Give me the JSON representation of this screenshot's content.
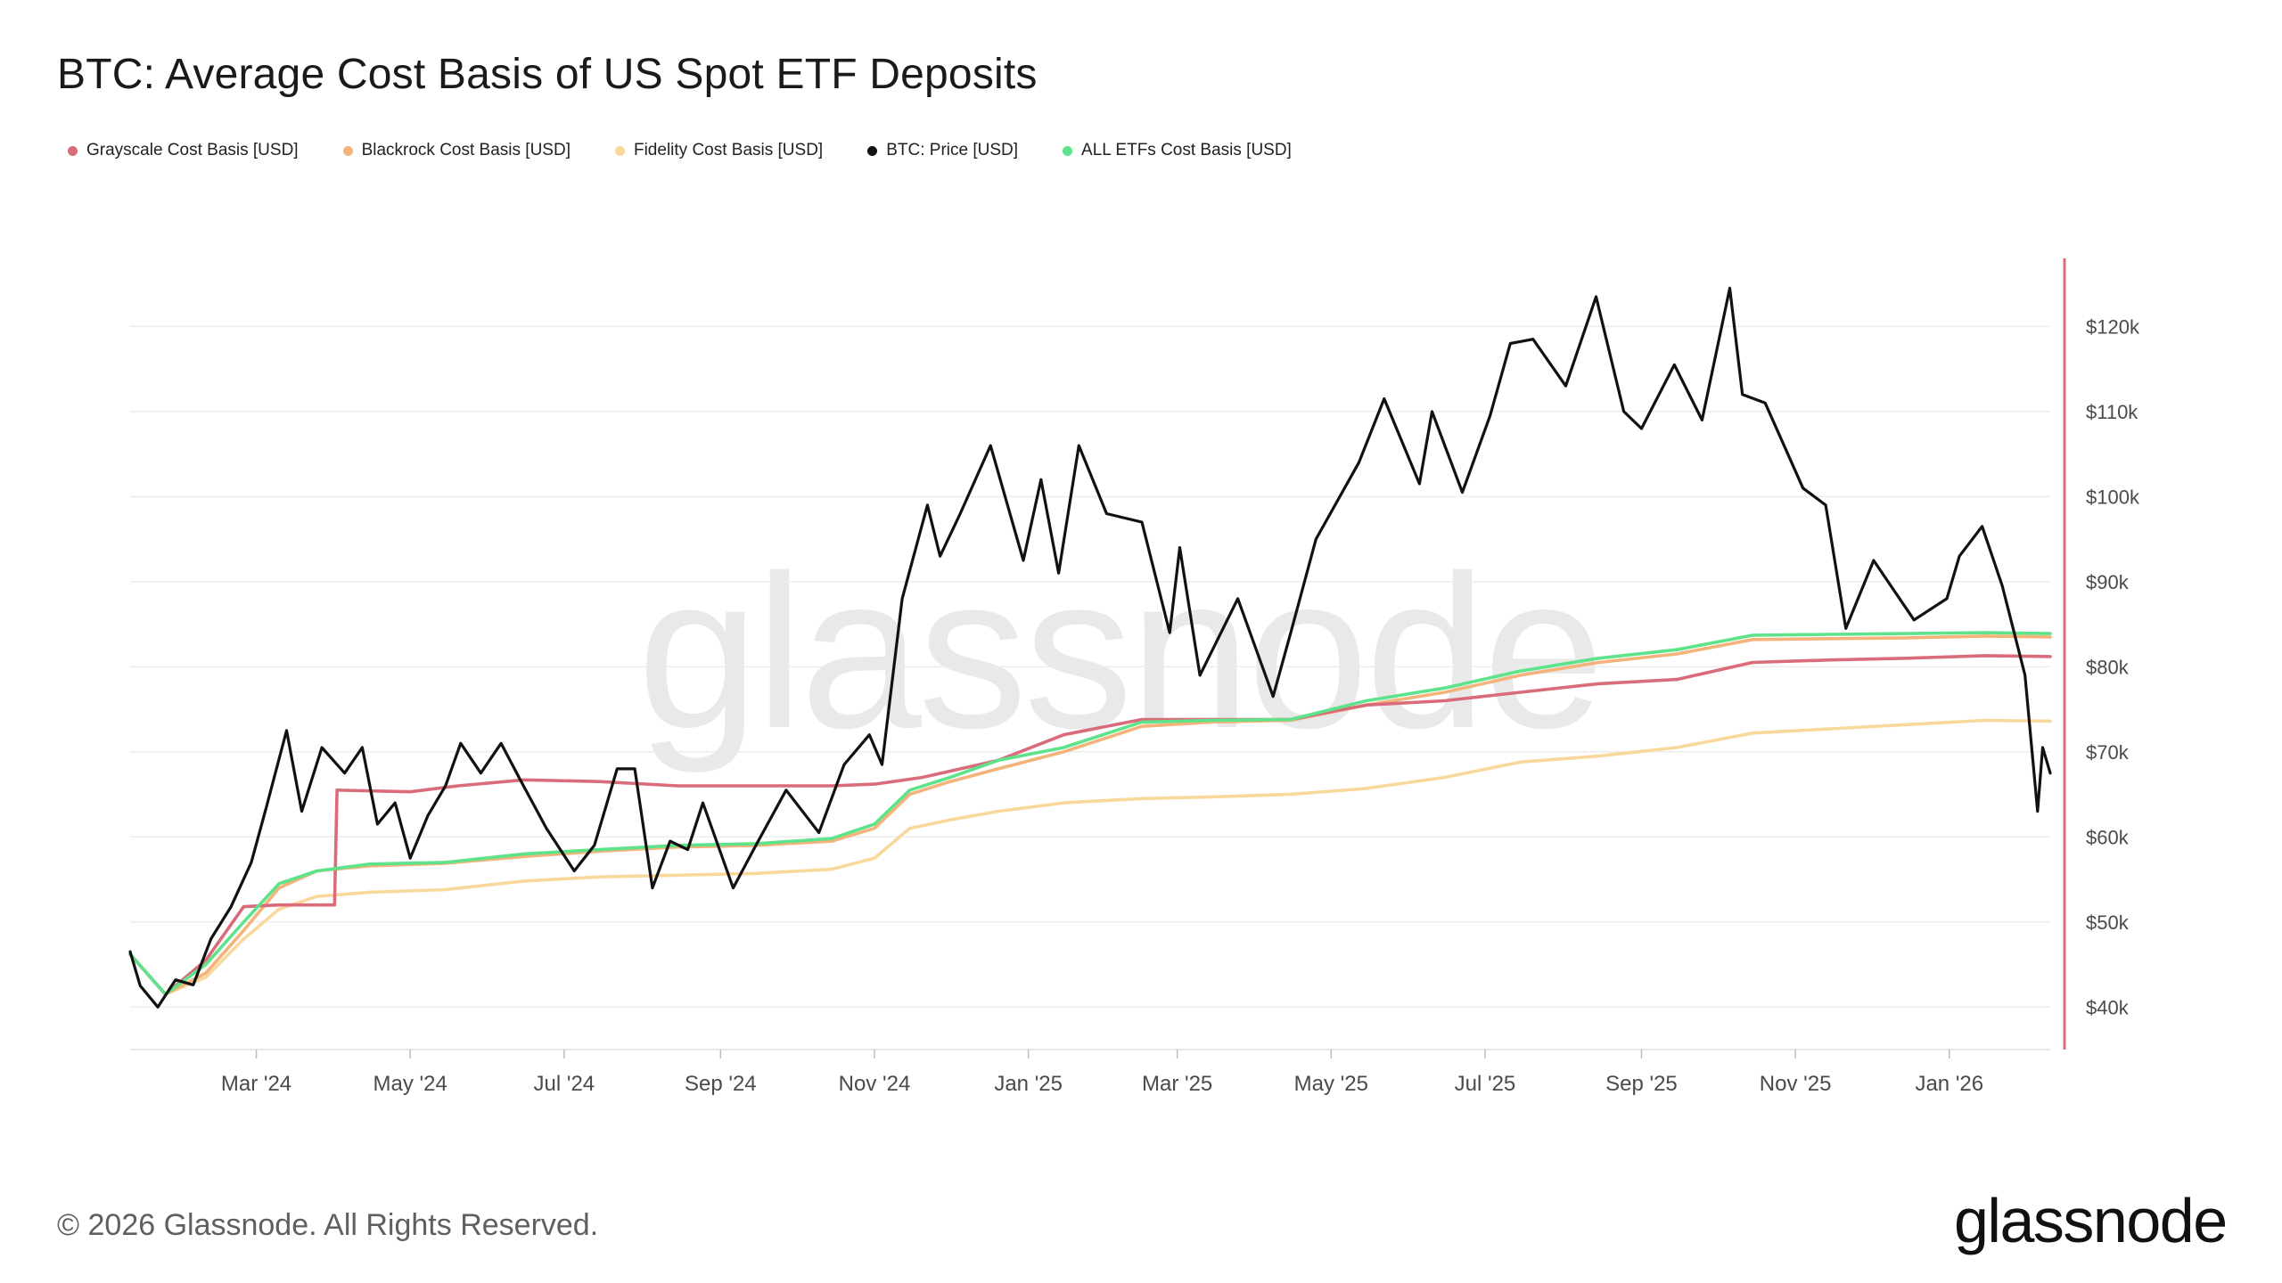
{
  "header": {
    "title": "BTC: Average Cost Basis of US Spot ETF Deposits"
  },
  "legend": [
    {
      "label": "Grayscale Cost Basis [USD]",
      "color": "#d96b7a"
    },
    {
      "label": "Blackrock Cost Basis [USD]",
      "color": "#f4b37a"
    },
    {
      "label": "Fidelity Cost Basis [USD]",
      "color": "#f9d89c"
    },
    {
      "label": "BTC: Price [USD]",
      "color": "#111111"
    },
    {
      "label": "ALL ETFs Cost Basis [USD]",
      "color": "#5ee38a"
    }
  ],
  "footer": {
    "copyright": "© 2026 Glassnode. All Rights Reserved.",
    "brand": "glassnode",
    "watermark": "glassnode"
  },
  "chart_data": {
    "type": "line",
    "title": "BTC: Average Cost Basis of US Spot ETF Deposits",
    "x_range": [
      "2024-01-11",
      "2026-02-10"
    ],
    "ylim": [
      35000,
      128000
    ],
    "y_axis_position": "right",
    "y_ticks": [
      {
        "value": 40000,
        "label": "$40k"
      },
      {
        "value": 50000,
        "label": "$50k"
      },
      {
        "value": 60000,
        "label": "$60k"
      },
      {
        "value": 70000,
        "label": "$70k"
      },
      {
        "value": 80000,
        "label": "$80k"
      },
      {
        "value": 90000,
        "label": "$90k"
      },
      {
        "value": 100000,
        "label": "$100k"
      },
      {
        "value": 110000,
        "label": "$110k"
      },
      {
        "value": 120000,
        "label": "$120k"
      }
    ],
    "x_ticks": [
      {
        "date": "2024-03-01",
        "label": "Mar '24"
      },
      {
        "date": "2024-05-01",
        "label": "May '24"
      },
      {
        "date": "2024-07-01",
        "label": "Jul '24"
      },
      {
        "date": "2024-09-01",
        "label": "Sep '24"
      },
      {
        "date": "2024-11-01",
        "label": "Nov '24"
      },
      {
        "date": "2025-01-01",
        "label": "Jan '25"
      },
      {
        "date": "2025-03-01",
        "label": "Mar '25"
      },
      {
        "date": "2025-05-01",
        "label": "May '25"
      },
      {
        "date": "2025-07-01",
        "label": "Jul '25"
      },
      {
        "date": "2025-09-01",
        "label": "Sep '25"
      },
      {
        "date": "2025-11-01",
        "label": "Nov '25"
      },
      {
        "date": "2026-01-01",
        "label": "Jan '26"
      }
    ],
    "grid": "horizontal",
    "legend_position": "top-left",
    "series": [
      {
        "name": "Fidelity Cost Basis [USD]",
        "color": "#f9d89c",
        "points": [
          [
            "2024-01-11",
            46200
          ],
          [
            "2024-01-25",
            41500
          ],
          [
            "2024-02-10",
            43500
          ],
          [
            "2024-02-25",
            48000
          ],
          [
            "2024-03-10",
            51500
          ],
          [
            "2024-03-25",
            53000
          ],
          [
            "2024-04-15",
            53500
          ],
          [
            "2024-05-15",
            53800
          ],
          [
            "2024-06-15",
            54800
          ],
          [
            "2024-07-15",
            55300
          ],
          [
            "2024-08-15",
            55500
          ],
          [
            "2024-09-15",
            55700
          ],
          [
            "2024-10-15",
            56200
          ],
          [
            "2024-11-01",
            57500
          ],
          [
            "2024-11-15",
            61000
          ],
          [
            "2024-12-01",
            62000
          ],
          [
            "2024-12-20",
            63000
          ],
          [
            "2025-01-15",
            64000
          ],
          [
            "2025-02-15",
            64500
          ],
          [
            "2025-03-15",
            64700
          ],
          [
            "2025-04-15",
            65000
          ],
          [
            "2025-05-15",
            65700
          ],
          [
            "2025-06-15",
            67000
          ],
          [
            "2025-07-15",
            68800
          ],
          [
            "2025-08-15",
            69500
          ],
          [
            "2025-09-15",
            70500
          ],
          [
            "2025-10-15",
            72200
          ],
          [
            "2025-11-15",
            72700
          ],
          [
            "2025-12-15",
            73200
          ],
          [
            "2026-01-15",
            73700
          ],
          [
            "2026-02-10",
            73600
          ]
        ]
      },
      {
        "name": "Blackrock Cost Basis [USD]",
        "color": "#f4b37a",
        "points": [
          [
            "2024-01-11",
            46200
          ],
          [
            "2024-01-25",
            41500
          ],
          [
            "2024-02-10",
            44000
          ],
          [
            "2024-02-25",
            49000
          ],
          [
            "2024-03-10",
            54000
          ],
          [
            "2024-03-25",
            56000
          ],
          [
            "2024-04-15",
            56600
          ],
          [
            "2024-05-15",
            56900
          ],
          [
            "2024-06-15",
            57700
          ],
          [
            "2024-07-15",
            58300
          ],
          [
            "2024-08-15",
            58800
          ],
          [
            "2024-09-15",
            59000
          ],
          [
            "2024-10-15",
            59500
          ],
          [
            "2024-11-01",
            61000
          ],
          [
            "2024-11-15",
            65000
          ],
          [
            "2024-12-01",
            66500
          ],
          [
            "2024-12-20",
            68000
          ],
          [
            "2025-01-15",
            70000
          ],
          [
            "2025-02-15",
            73000
          ],
          [
            "2025-03-15",
            73500
          ],
          [
            "2025-04-15",
            73700
          ],
          [
            "2025-05-15",
            75500
          ],
          [
            "2025-06-15",
            77000
          ],
          [
            "2025-07-15",
            79000
          ],
          [
            "2025-08-15",
            80500
          ],
          [
            "2025-09-15",
            81500
          ],
          [
            "2025-10-15",
            83200
          ],
          [
            "2025-11-15",
            83300
          ],
          [
            "2025-12-15",
            83400
          ],
          [
            "2026-01-15",
            83600
          ],
          [
            "2026-02-10",
            83500
          ]
        ]
      },
      {
        "name": "Grayscale Cost Basis [USD]",
        "color": "#d96b7a",
        "points": [
          [
            "2024-01-11",
            46200
          ],
          [
            "2024-01-25",
            41500
          ],
          [
            "2024-02-10",
            45500
          ],
          [
            "2024-02-25",
            51800
          ],
          [
            "2024-03-10",
            52000
          ],
          [
            "2024-03-25",
            52000
          ],
          [
            "2024-04-01",
            52000
          ],
          [
            "2024-04-02",
            65500
          ],
          [
            "2024-05-01",
            65300
          ],
          [
            "2024-05-20",
            66000
          ],
          [
            "2024-06-15",
            66700
          ],
          [
            "2024-07-15",
            66500
          ],
          [
            "2024-08-15",
            66000
          ],
          [
            "2024-09-15",
            66000
          ],
          [
            "2024-10-15",
            66000
          ],
          [
            "2024-11-01",
            66200
          ],
          [
            "2024-11-20",
            67000
          ],
          [
            "2024-12-20",
            69000
          ],
          [
            "2025-01-15",
            72000
          ],
          [
            "2025-02-15",
            73800
          ],
          [
            "2025-03-15",
            73800
          ],
          [
            "2025-04-15",
            73800
          ],
          [
            "2025-05-15",
            75500
          ],
          [
            "2025-06-15",
            76000
          ],
          [
            "2025-07-15",
            77000
          ],
          [
            "2025-08-15",
            78000
          ],
          [
            "2025-09-15",
            78500
          ],
          [
            "2025-10-15",
            80500
          ],
          [
            "2025-11-15",
            80800
          ],
          [
            "2025-12-15",
            81000
          ],
          [
            "2026-01-15",
            81300
          ],
          [
            "2026-02-10",
            81200
          ]
        ]
      },
      {
        "name": "ALL ETFs Cost Basis [USD]",
        "color": "#5ee38a",
        "points": [
          [
            "2024-01-11",
            46200
          ],
          [
            "2024-01-25",
            41500
          ],
          [
            "2024-02-10",
            45000
          ],
          [
            "2024-02-25",
            50000
          ],
          [
            "2024-03-10",
            54500
          ],
          [
            "2024-03-25",
            56000
          ],
          [
            "2024-04-15",
            56800
          ],
          [
            "2024-05-15",
            57000
          ],
          [
            "2024-06-15",
            58000
          ],
          [
            "2024-07-15",
            58500
          ],
          [
            "2024-08-15",
            59000
          ],
          [
            "2024-09-15",
            59200
          ],
          [
            "2024-10-15",
            59800
          ],
          [
            "2024-11-01",
            61500
          ],
          [
            "2024-11-15",
            65500
          ],
          [
            "2024-12-01",
            67000
          ],
          [
            "2024-12-20",
            69000
          ],
          [
            "2025-01-15",
            70500
          ],
          [
            "2025-02-15",
            73500
          ],
          [
            "2025-03-15",
            73700
          ],
          [
            "2025-04-15",
            73800
          ],
          [
            "2025-05-15",
            76000
          ],
          [
            "2025-06-15",
            77500
          ],
          [
            "2025-07-15",
            79500
          ],
          [
            "2025-08-15",
            81000
          ],
          [
            "2025-09-15",
            82000
          ],
          [
            "2025-10-15",
            83700
          ],
          [
            "2025-11-15",
            83800
          ],
          [
            "2025-12-15",
            83900
          ],
          [
            "2026-01-15",
            84000
          ],
          [
            "2026-02-10",
            83900
          ]
        ]
      },
      {
        "name": "BTC: Price [USD]",
        "color": "#111111",
        "points": [
          [
            "2024-01-11",
            46500
          ],
          [
            "2024-01-15",
            42500
          ],
          [
            "2024-01-22",
            40000
          ],
          [
            "2024-01-29",
            43200
          ],
          [
            "2024-02-05",
            42600
          ],
          [
            "2024-02-12",
            48000
          ],
          [
            "2024-02-20",
            51800
          ],
          [
            "2024-02-28",
            57000
          ],
          [
            "2024-03-05",
            63500
          ],
          [
            "2024-03-13",
            72500
          ],
          [
            "2024-03-19",
            63000
          ],
          [
            "2024-03-27",
            70500
          ],
          [
            "2024-04-05",
            67500
          ],
          [
            "2024-04-12",
            70500
          ],
          [
            "2024-04-18",
            61500
          ],
          [
            "2024-04-25",
            64000
          ],
          [
            "2024-05-01",
            57500
          ],
          [
            "2024-05-08",
            62500
          ],
          [
            "2024-05-15",
            66000
          ],
          [
            "2024-05-21",
            71000
          ],
          [
            "2024-05-29",
            67500
          ],
          [
            "2024-06-06",
            71000
          ],
          [
            "2024-06-14",
            66500
          ],
          [
            "2024-06-24",
            61000
          ],
          [
            "2024-07-05",
            56000
          ],
          [
            "2024-07-13",
            59000
          ],
          [
            "2024-07-22",
            68000
          ],
          [
            "2024-07-29",
            68000
          ],
          [
            "2024-08-05",
            54000
          ],
          [
            "2024-08-12",
            59500
          ],
          [
            "2024-08-19",
            58500
          ],
          [
            "2024-08-25",
            64000
          ],
          [
            "2024-09-06",
            54000
          ],
          [
            "2024-09-15",
            59000
          ],
          [
            "2024-09-27",
            65500
          ],
          [
            "2024-10-10",
            60500
          ],
          [
            "2024-10-20",
            68500
          ],
          [
            "2024-10-30",
            72000
          ],
          [
            "2024-11-04",
            68500
          ],
          [
            "2024-11-12",
            88000
          ],
          [
            "2024-11-22",
            99000
          ],
          [
            "2024-11-27",
            93000
          ],
          [
            "2024-12-05",
            98000
          ],
          [
            "2024-12-17",
            106000
          ],
          [
            "2024-12-30",
            92500
          ],
          [
            "2025-01-06",
            102000
          ],
          [
            "2025-01-13",
            91000
          ],
          [
            "2025-01-21",
            106000
          ],
          [
            "2025-02-01",
            98000
          ],
          [
            "2025-02-15",
            97000
          ],
          [
            "2025-02-26",
            84000
          ],
          [
            "2025-03-02",
            94000
          ],
          [
            "2025-03-10",
            79000
          ],
          [
            "2025-03-25",
            88000
          ],
          [
            "2025-04-08",
            76500
          ],
          [
            "2025-04-15",
            84000
          ],
          [
            "2025-04-25",
            95000
          ],
          [
            "2025-05-12",
            104000
          ],
          [
            "2025-05-22",
            111500
          ],
          [
            "2025-06-05",
            101500
          ],
          [
            "2025-06-10",
            110000
          ],
          [
            "2025-06-22",
            100500
          ],
          [
            "2025-07-03",
            109500
          ],
          [
            "2025-07-11",
            118000
          ],
          [
            "2025-07-20",
            118500
          ],
          [
            "2025-08-02",
            113000
          ],
          [
            "2025-08-14",
            123500
          ],
          [
            "2025-08-25",
            110000
          ],
          [
            "2025-09-01",
            108000
          ],
          [
            "2025-09-14",
            115500
          ],
          [
            "2025-09-25",
            109000
          ],
          [
            "2025-10-06",
            124500
          ],
          [
            "2025-10-11",
            112000
          ],
          [
            "2025-10-20",
            111000
          ],
          [
            "2025-11-04",
            101000
          ],
          [
            "2025-11-13",
            99000
          ],
          [
            "2025-11-21",
            84500
          ],
          [
            "2025-12-02",
            92500
          ],
          [
            "2025-12-18",
            85500
          ],
          [
            "2025-12-31",
            88000
          ],
          [
            "2026-01-05",
            93000
          ],
          [
            "2026-01-14",
            96500
          ],
          [
            "2026-01-22",
            89500
          ],
          [
            "2026-01-31",
            79000
          ],
          [
            "2026-02-05",
            63000
          ],
          [
            "2026-02-07",
            70500
          ],
          [
            "2026-02-10",
            67500
          ]
        ]
      }
    ]
  }
}
